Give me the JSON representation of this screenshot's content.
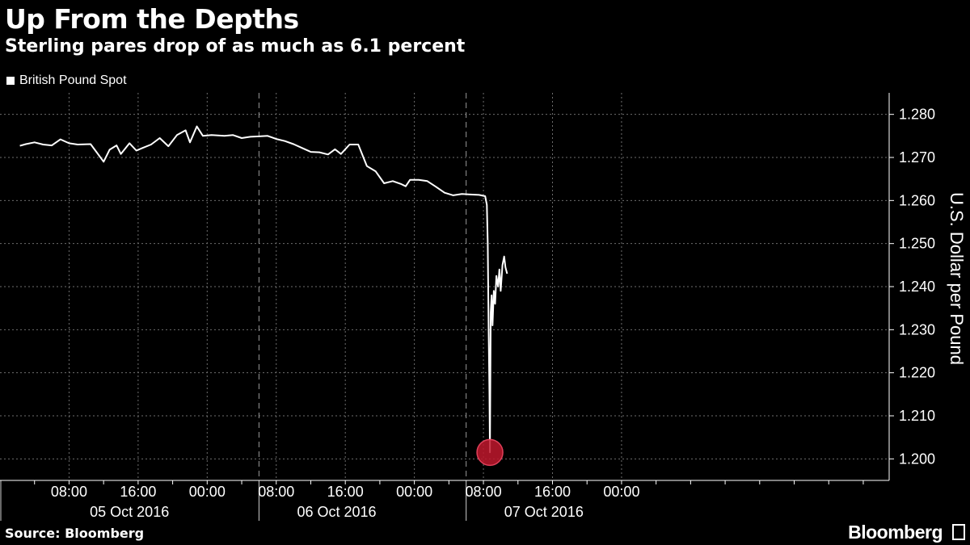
{
  "header": {
    "title": "Up From the Depths",
    "subtitle": "Sterling pares drop of as much as 6.1 percent"
  },
  "legend": {
    "label": "British Pound Spot"
  },
  "footer": {
    "source": "Source: Bloomberg",
    "brand": "Bloomberg"
  },
  "colors": {
    "background": "#000000",
    "line": "#ffffff",
    "marker": "#c0172d",
    "grid": "#6e6e6e"
  },
  "chart_data": {
    "type": "line",
    "ylabel": "U.S. Dollar per Pound",
    "ylim": [
      1.195,
      1.285
    ],
    "y_ticks": [
      "1.200",
      "1.210",
      "1.220",
      "1.230",
      "1.240",
      "1.250",
      "1.260",
      "1.270",
      "1.280"
    ],
    "xlim_hours": [
      0,
      103
    ],
    "x_ticks": [
      {
        "h": 8,
        "label": "08:00"
      },
      {
        "h": 16,
        "label": "16:00"
      },
      {
        "h": 24,
        "label": "00:00"
      },
      {
        "h": 32,
        "label": "08:00"
      },
      {
        "h": 40,
        "label": "16:00"
      },
      {
        "h": 48,
        "label": "00:00"
      },
      {
        "h": 56,
        "label": "08:00"
      },
      {
        "h": 64,
        "label": "16:00"
      },
      {
        "h": 72,
        "label": "00:00"
      }
    ],
    "day_labels": [
      {
        "center_h": 15,
        "label": "05 Oct 2016"
      },
      {
        "center_h": 39,
        "label": "06 Oct 2016"
      },
      {
        "center_h": 63,
        "label": "07 Oct 2016"
      }
    ],
    "day_dividers_h": [
      30,
      54
    ],
    "grid": true,
    "legend_position": "top-left",
    "series": [
      {
        "name": "British Pound Spot",
        "points": [
          [
            2.3,
            1.2727
          ],
          [
            3.0,
            1.2731
          ],
          [
            4.0,
            1.2735
          ],
          [
            5.0,
            1.273
          ],
          [
            6.0,
            1.2728
          ],
          [
            7.0,
            1.2742
          ],
          [
            8.0,
            1.2733
          ],
          [
            9.0,
            1.273
          ],
          [
            10.5,
            1.2731
          ],
          [
            11.2,
            1.2712
          ],
          [
            12.0,
            1.269
          ],
          [
            12.7,
            1.2718
          ],
          [
            13.5,
            1.2728
          ],
          [
            14.0,
            1.2708
          ],
          [
            15.0,
            1.2733
          ],
          [
            15.8,
            1.2716
          ],
          [
            16.5,
            1.2722
          ],
          [
            17.5,
            1.273
          ],
          [
            18.5,
            1.2745
          ],
          [
            19.5,
            1.2726
          ],
          [
            20.5,
            1.2752
          ],
          [
            21.5,
            1.2763
          ],
          [
            22.0,
            1.2735
          ],
          [
            22.8,
            1.2772
          ],
          [
            23.5,
            1.275
          ],
          [
            24.5,
            1.2752
          ],
          [
            26.0,
            1.275
          ],
          [
            27.0,
            1.2752
          ],
          [
            28.0,
            1.2745
          ],
          [
            29.0,
            1.2748
          ],
          [
            30.0,
            1.2749
          ],
          [
            31.0,
            1.275
          ],
          [
            32.0,
            1.2743
          ],
          [
            33.0,
            1.2738
          ],
          [
            34.0,
            1.2731
          ],
          [
            35.0,
            1.2722
          ],
          [
            36.0,
            1.2713
          ],
          [
            37.0,
            1.2712
          ],
          [
            38.0,
            1.2707
          ],
          [
            38.8,
            1.2719
          ],
          [
            39.5,
            1.2708
          ],
          [
            40.5,
            1.273
          ],
          [
            41.5,
            1.273
          ],
          [
            42.5,
            1.268
          ],
          [
            43.5,
            1.2668
          ],
          [
            44.5,
            1.264
          ],
          [
            45.5,
            1.2645
          ],
          [
            46.5,
            1.2638
          ],
          [
            47.0,
            1.2633
          ],
          [
            47.5,
            1.2648
          ],
          [
            48.5,
            1.2648
          ],
          [
            49.5,
            1.2645
          ],
          [
            50.5,
            1.2632
          ],
          [
            51.5,
            1.2618
          ],
          [
            52.5,
            1.2612
          ],
          [
            53.5,
            1.2615
          ],
          [
            54.5,
            1.2614
          ],
          [
            55.5,
            1.2613
          ],
          [
            56.2,
            1.261
          ],
          [
            56.4,
            1.259
          ],
          [
            56.5,
            1.25
          ],
          [
            56.6,
            1.23
          ],
          [
            56.7,
            1.215
          ],
          [
            56.75,
            1.2015
          ],
          [
            56.85,
            1.234
          ],
          [
            56.95,
            1.238
          ],
          [
            57.05,
            1.231
          ],
          [
            57.2,
            1.239
          ],
          [
            57.35,
            1.236
          ],
          [
            57.5,
            1.2425
          ],
          [
            57.7,
            1.24
          ],
          [
            57.85,
            1.244
          ],
          [
            58.0,
            1.239
          ],
          [
            58.2,
            1.245
          ],
          [
            58.4,
            1.247
          ],
          [
            58.55,
            1.2445
          ],
          [
            58.75,
            1.243
          ]
        ]
      }
    ],
    "annotations": [
      {
        "type": "marker",
        "x_h": 56.75,
        "y": 1.2015,
        "label": ""
      }
    ]
  }
}
